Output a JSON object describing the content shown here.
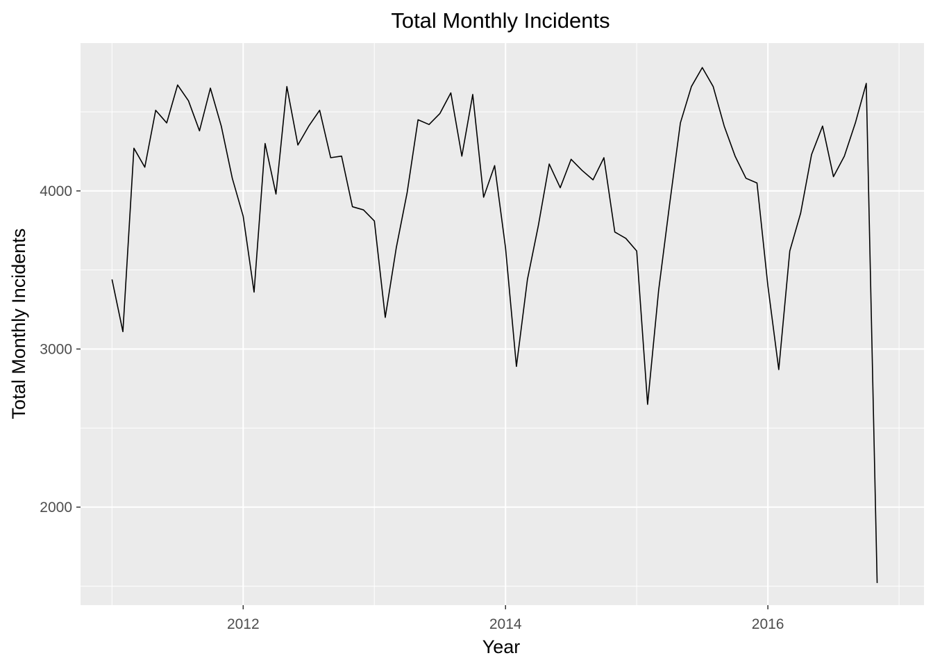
{
  "chart_data": {
    "type": "line",
    "title": "Total Monthly Incidents",
    "xlabel": "Year",
    "ylabel": "Total Monthly Incidents",
    "x_ticks": [
      2012,
      2014,
      2016
    ],
    "x_tick_labels": [
      "2012",
      "2014",
      "2016"
    ],
    "y_ticks": [
      2000,
      3000,
      4000
    ],
    "y_tick_labels": [
      "2000",
      "3000",
      "4000"
    ],
    "xlim": [
      2010.76,
      2017.19
    ],
    "ylim": [
      1380,
      4935
    ],
    "grid": true,
    "legend": "none",
    "colors": {
      "panel": "#ebebeb",
      "grid": "#ffffff",
      "line": "#000000"
    },
    "series": [
      {
        "x": [
          2011.0,
          2011.083,
          2011.167,
          2011.25,
          2011.333,
          2011.417,
          2011.5,
          2011.583,
          2011.667,
          2011.75,
          2011.833,
          2011.917,
          2012.0,
          2012.083,
          2012.167,
          2012.25,
          2012.333,
          2012.417,
          2012.5,
          2012.583,
          2012.667,
          2012.75,
          2012.833,
          2012.917,
          2013.0,
          2013.083,
          2013.167,
          2013.25,
          2013.333,
          2013.417,
          2013.5,
          2013.583,
          2013.667,
          2013.75,
          2013.833,
          2013.917,
          2014.0,
          2014.083,
          2014.167,
          2014.25,
          2014.333,
          2014.417,
          2014.5,
          2014.583,
          2014.667,
          2014.75,
          2014.833,
          2014.917,
          2015.0,
          2015.083,
          2015.167,
          2015.25,
          2015.333,
          2015.417,
          2015.5,
          2015.583,
          2015.667,
          2015.75,
          2015.833,
          2015.917,
          2016.0,
          2016.083,
          2016.167,
          2016.25,
          2016.333,
          2016.417,
          2016.5,
          2016.583,
          2016.667,
          2016.75,
          2016.833
        ],
        "values": [
          3440,
          3110,
          4270,
          4150,
          4510,
          4430,
          4670,
          4570,
          4380,
          4650,
          4410,
          4080,
          3840,
          3360,
          4300,
          3980,
          4660,
          4290,
          4410,
          4510,
          4210,
          4220,
          3900,
          3880,
          3810,
          3200,
          3640,
          3990,
          4450,
          4420,
          4490,
          4620,
          4220,
          4610,
          3960,
          4160,
          3640,
          2890,
          3440,
          3780,
          4170,
          4020,
          4200,
          4130,
          4070,
          4210,
          3740,
          3700,
          3620,
          2650,
          3370,
          3910,
          4430,
          4660,
          4780,
          4660,
          4410,
          4220,
          4080,
          4050,
          3400,
          2870,
          3620,
          3860,
          4230,
          4410,
          4090,
          4220,
          4430,
          4680,
          1520
        ]
      }
    ]
  }
}
